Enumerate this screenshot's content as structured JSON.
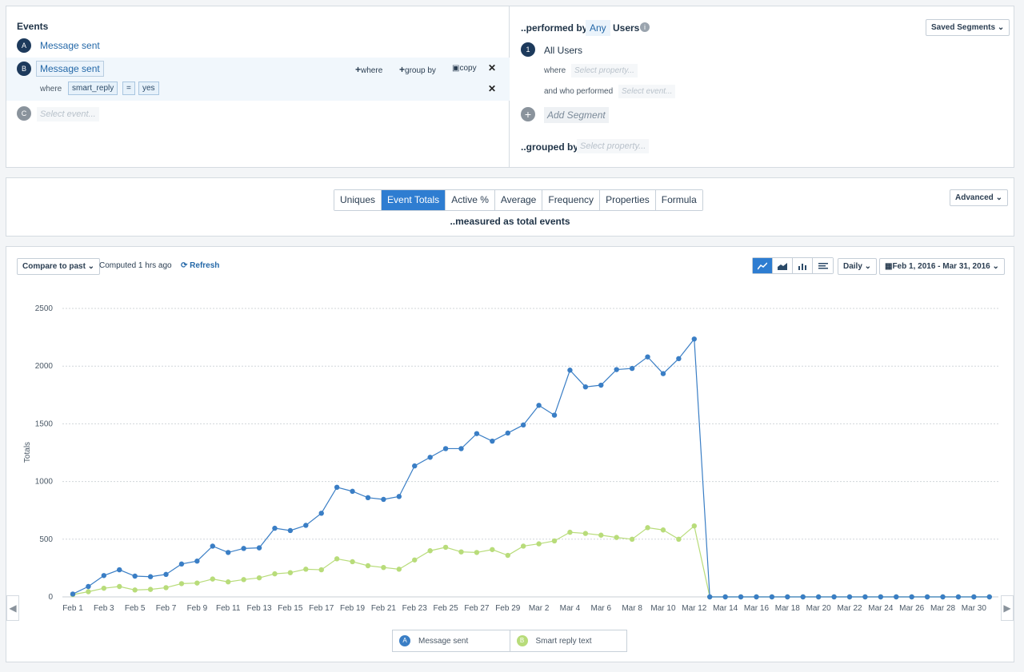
{
  "events": {
    "title": "Events",
    "items": [
      {
        "letter": "A",
        "label": "Message sent"
      },
      {
        "letter": "B",
        "label": "Message sent"
      },
      {
        "letter": "C",
        "placeholder": "Select event..."
      }
    ],
    "actions": {
      "where": "where",
      "group_by": "group by",
      "copy": "copy"
    },
    "filter": {
      "where": "where",
      "property": "smart_reply",
      "operator": "=",
      "value": "yes"
    }
  },
  "segments": {
    "performed_by": "..performed by",
    "any": "Any",
    "users": "Users",
    "saved_segments": "Saved Segments",
    "segment_number": "1",
    "segment_name": "All Users",
    "where_label": "where",
    "where_placeholder": "Select property...",
    "who_performed_label": "and who performed",
    "who_performed_placeholder": "Select event...",
    "add_segment": "Add Segment",
    "grouped_by": "..grouped by",
    "grouped_by_placeholder": "Select property..."
  },
  "metric": {
    "tabs": [
      "Uniques",
      "Event Totals",
      "Active %",
      "Average",
      "Frequency",
      "Properties",
      "Formula"
    ],
    "active_tab": "Event Totals",
    "measured_as": "..measured as total events",
    "advanced": "Advanced"
  },
  "chart_toolbar": {
    "compare": "Compare to past",
    "computed": "Computed 1 hrs ago",
    "refresh": "Refresh",
    "interval": "Daily",
    "date_range": "Feb 1, 2016 - Mar 31, 2016"
  },
  "colors": {
    "series_a": "#3a7ec5",
    "series_b": "#b8dc7a",
    "accent": "#2e7dd1"
  },
  "chart_data": {
    "type": "line",
    "ylabel": "Totals",
    "ylim": [
      0,
      2500
    ],
    "yticks": [
      0,
      500,
      1000,
      1500,
      2000,
      2500
    ],
    "grid": true,
    "x_tick_labels": [
      "Feb 1",
      "Feb 3",
      "Feb 5",
      "Feb 7",
      "Feb 9",
      "Feb 11",
      "Feb 13",
      "Feb 15",
      "Feb 17",
      "Feb 19",
      "Feb 21",
      "Feb 23",
      "Feb 25",
      "Feb 27",
      "Feb 29",
      "Mar 2",
      "Mar 4",
      "Mar 6",
      "Mar 8",
      "Mar 10",
      "Mar 12",
      "Mar 14",
      "Mar 16",
      "Mar 18",
      "Mar 20",
      "Mar 22",
      "Mar 24",
      "Mar 26",
      "Mar 28",
      "Mar 30"
    ],
    "series": [
      {
        "name": "Message sent",
        "letter": "A",
        "values": [
          25,
          90,
          185,
          235,
          180,
          175,
          195,
          285,
          310,
          440,
          385,
          420,
          425,
          595,
          575,
          620,
          725,
          950,
          915,
          860,
          845,
          870,
          1135,
          1210,
          1285,
          1285,
          1415,
          1350,
          1420,
          1490,
          1660,
          1575,
          1965,
          1820,
          1835,
          1970,
          1980,
          2080,
          1935,
          2065,
          2235,
          0,
          0,
          0,
          0,
          0,
          0,
          0,
          0,
          0,
          0,
          0,
          0,
          0,
          0,
          0,
          0,
          0,
          0,
          0
        ]
      },
      {
        "name": "Smart reply text",
        "letter": "B",
        "values": [
          20,
          45,
          75,
          90,
          60,
          65,
          80,
          115,
          120,
          155,
          130,
          150,
          165,
          200,
          210,
          240,
          235,
          330,
          305,
          270,
          255,
          240,
          320,
          400,
          430,
          390,
          385,
          410,
          360,
          440,
          460,
          485,
          560,
          550,
          535,
          515,
          500,
          600,
          580,
          500,
          615,
          0,
          0,
          0,
          0,
          0,
          0,
          0,
          0,
          0,
          0,
          0,
          0,
          0,
          0,
          0,
          0,
          0,
          0,
          0
        ]
      }
    ]
  }
}
